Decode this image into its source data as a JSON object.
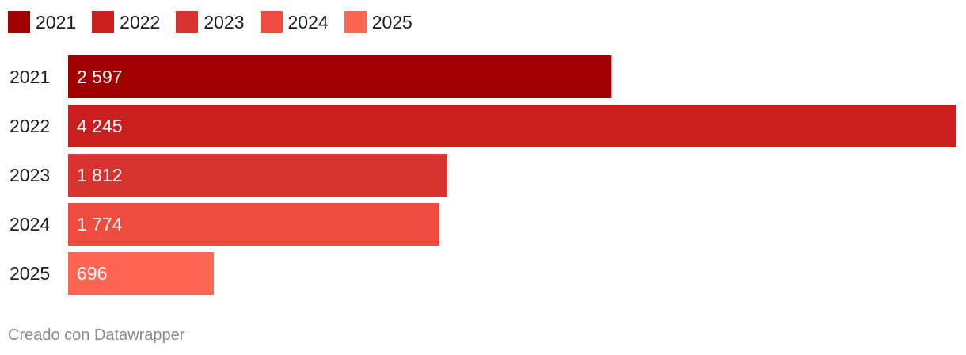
{
  "chart_data": {
    "type": "bar",
    "orientation": "horizontal",
    "categories": [
      "2021",
      "2022",
      "2023",
      "2024",
      "2025"
    ],
    "values": [
      2597,
      4245,
      1812,
      1774,
      696
    ],
    "value_labels": [
      "2 597",
      "4 245",
      "1 812",
      "1 774",
      "696"
    ],
    "colors": [
      "#a10000",
      "#c91f1f",
      "#d8332f",
      "#ef4b3f",
      "#ff6553"
    ],
    "legend": {
      "placement": "top-left",
      "entries": [
        {
          "label": "2021",
          "color": "#a10000"
        },
        {
          "label": "2022",
          "color": "#c91f1f"
        },
        {
          "label": "2023",
          "color": "#d8332f"
        },
        {
          "label": "2024",
          "color": "#ef4b3f"
        },
        {
          "label": "2025",
          "color": "#ff6553"
        }
      ]
    },
    "xlim": [
      0,
      4245
    ],
    "grid": false
  },
  "footer": {
    "credit": "Creado con Datawrapper"
  }
}
